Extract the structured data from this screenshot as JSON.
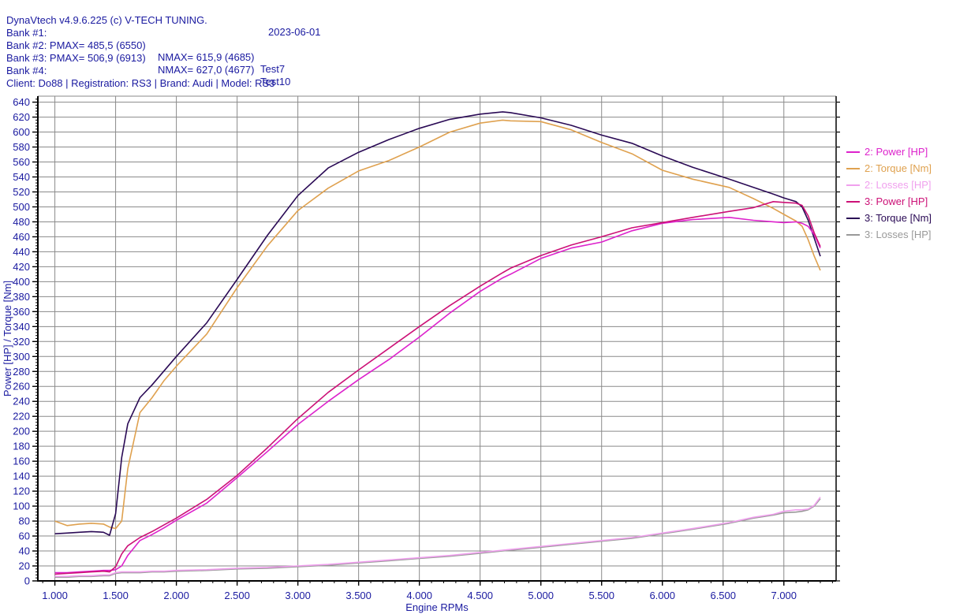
{
  "header": {
    "title": "DynaVtech v4.9.6.225 (c) V-TECH TUNING.",
    "date": "2023-06-01",
    "bank1": "Bank #1:",
    "bank2_main": "Bank #2: PMAX= 485,5 (6550)",
    "bank2_nmax": "NMAX= 615,9 (4685)",
    "bank2_test": "Test7",
    "bank3_main": "Bank #3: PMAX= 506,9 (6913)",
    "bank3_nmax": "NMAX= 627,0 (4677)",
    "bank3_test": "Test10",
    "bank4": "Bank #4:",
    "client": "Client: Do88 | Registration: RS3 | Brand: Audi | Model: RS3"
  },
  "colors": {
    "text_navy": "#1a1aa0",
    "grid": "#8a8a8a",
    "axis": "#000000",
    "background": "#ffffff"
  },
  "chart_data": {
    "type": "line",
    "title": "",
    "xlabel": "Engine RPMs",
    "ylabel": "Power [HP] / Torque [Nm]",
    "xlim": [
      860,
      7430
    ],
    "ylim": [
      0,
      648
    ],
    "grid": true,
    "legend_position": "right-outside",
    "x_ticks": {
      "major_step": 500,
      "minor_step": 100,
      "first_major": 1000,
      "last_major": 7000,
      "labels": [
        "1.000",
        "1.500",
        "2.000",
        "2.500",
        "3.000",
        "3.500",
        "4.000",
        "4.500",
        "5.000",
        "5.500",
        "6.000",
        "6.500",
        "7.000"
      ]
    },
    "y_ticks": {
      "major_step": 20,
      "minor_step": 4,
      "first_major": 0,
      "last_major": 640
    },
    "x": [
      1000,
      1100,
      1200,
      1300,
      1400,
      1450,
      1500,
      1550,
      1600,
      1700,
      1800,
      1900,
      2000,
      2250,
      2500,
      2750,
      3000,
      3250,
      3500,
      3750,
      4000,
      4250,
      4500,
      4685,
      4750,
      5000,
      5250,
      5500,
      5750,
      6000,
      6250,
      6550,
      6750,
      6913,
      7000,
      7100,
      7150,
      7200,
      7250,
      7300
    ],
    "series": [
      {
        "id": "losses-3",
        "name": "3: Losses [HP]",
        "color": "#999999",
        "values": [
          5,
          5,
          6,
          6,
          7,
          7,
          10,
          11,
          11,
          11,
          12,
          12,
          13,
          14,
          16,
          17,
          19,
          21,
          24,
          27,
          30,
          33,
          37,
          40,
          41,
          45,
          49,
          53,
          57,
          63,
          69,
          77,
          84,
          88,
          91,
          92,
          93,
          95,
          100,
          110
        ]
      },
      {
        "id": "losses-2",
        "name": "2: Losses [HP]",
        "color": "#f0a0ee",
        "values": [
          6,
          6,
          7,
          7,
          8,
          8,
          11,
          12,
          12,
          12,
          13,
          13,
          14,
          15,
          17,
          18,
          20,
          22,
          25,
          28,
          31,
          34,
          38,
          41,
          42,
          46,
          50,
          54,
          58,
          64,
          70,
          78,
          85,
          89,
          93,
          95,
          95,
          96,
          101,
          112
        ]
      },
      {
        "id": "torque-2",
        "name": "2: Torque [Nm]",
        "color": "#dfa14f",
        "values": [
          80,
          74,
          76,
          77,
          76,
          72,
          70,
          80,
          150,
          225,
          245,
          268,
          287,
          330,
          392,
          448,
          495,
          525,
          548,
          562,
          580,
          600,
          612,
          616,
          615,
          614,
          603,
          586,
          571,
          549,
          537,
          526,
          511,
          498,
          490,
          481,
          474,
          456,
          434,
          415
        ]
      },
      {
        "id": "torque-3",
        "name": "3: Torque [Nm]",
        "color": "#2a0a55",
        "values": [
          63,
          64,
          65,
          66,
          65,
          61,
          90,
          165,
          210,
          245,
          262,
          281,
          300,
          345,
          403,
          462,
          515,
          552,
          573,
          590,
          605,
          617,
          624,
          627,
          626,
          619,
          609,
          596,
          585,
          568,
          553,
          537,
          526,
          517,
          512,
          507,
          500,
          482,
          458,
          434
        ]
      },
      {
        "id": "power-2",
        "name": "2: Power [HP]",
        "color": "#dd22cc",
        "values": [
          11,
          11,
          12,
          13,
          14,
          14,
          15,
          20,
          34,
          54,
          62,
          71,
          81,
          104,
          138,
          173,
          209,
          240,
          269,
          296,
          326,
          358,
          387,
          405,
          410,
          431,
          445,
          453,
          468,
          478,
          483,
          486,
          482,
          480,
          479,
          480,
          478,
          474,
          463,
          445
        ]
      },
      {
        "id": "power-3",
        "name": "3: Power [HP]",
        "color": "#cc1177",
        "values": [
          9,
          10,
          11,
          12,
          13,
          12,
          19,
          36,
          47,
          58,
          66,
          75,
          84,
          109,
          141,
          178,
          217,
          252,
          282,
          311,
          340,
          368,
          394,
          412,
          418,
          435,
          449,
          460,
          472,
          479,
          486,
          494,
          499,
          507,
          506,
          505,
          502,
          488,
          465,
          447
        ]
      }
    ],
    "legend_order": [
      "power-2",
      "torque-2",
      "losses-2",
      "power-3",
      "torque-3",
      "losses-3"
    ],
    "peaks": {
      "bank2": {
        "pmax_hp": "485,5",
        "pmax_rpm": 6550,
        "nmax_nm": "615,9",
        "nmax_rpm": 4685,
        "test": "Test7"
      },
      "bank3": {
        "pmax_hp": "506,9",
        "pmax_rpm": 6913,
        "nmax_nm": "627,0",
        "nmax_rpm": 4677,
        "test": "Test10"
      }
    }
  }
}
